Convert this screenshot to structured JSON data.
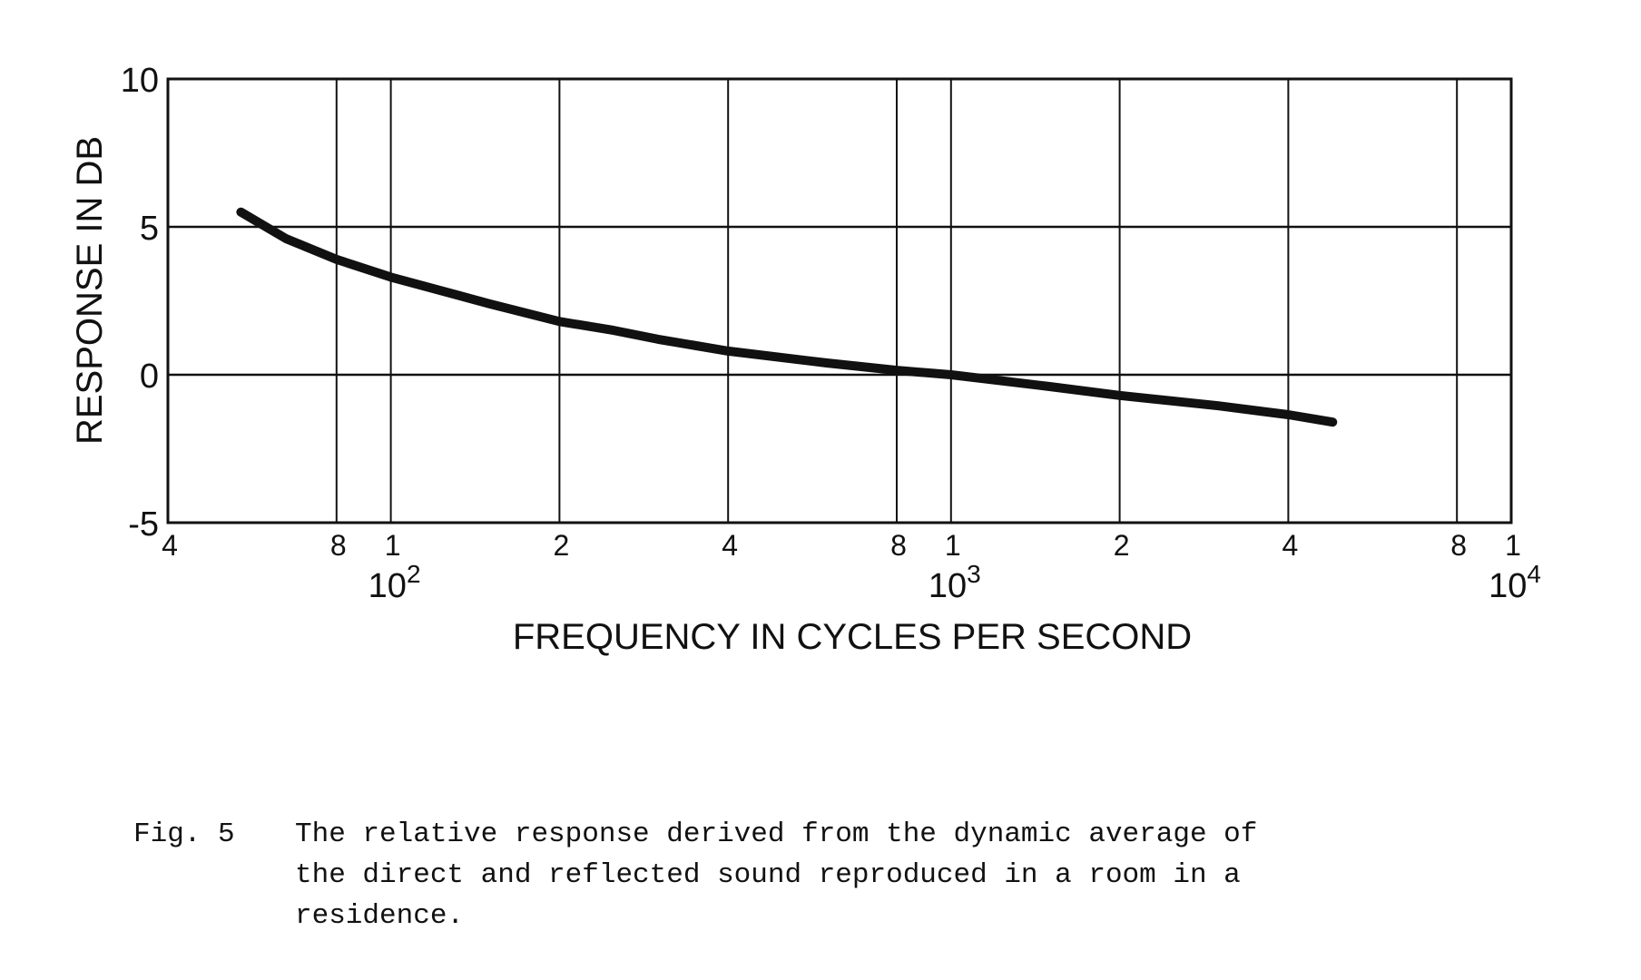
{
  "chart_data": {
    "type": "line",
    "xlabel": "FREQUENCY IN CYCLES PER SECOND",
    "ylabel": "RESPONSE IN DB",
    "x_scale": "log",
    "xlim": [
      40,
      10000
    ],
    "ylim": [
      -5,
      10
    ],
    "grid": true,
    "y_ticks": [
      {
        "value": 10,
        "label": "10"
      },
      {
        "value": 5,
        "label": "5"
      },
      {
        "value": 0,
        "label": "0"
      },
      {
        "value": -5,
        "label": "-5"
      }
    ],
    "x_ticks": [
      {
        "value": 40,
        "label": "4"
      },
      {
        "value": 80,
        "label": "8"
      },
      {
        "value": 100,
        "label": "1"
      },
      {
        "value": 200,
        "label": "2"
      },
      {
        "value": 400,
        "label": "4"
      },
      {
        "value": 800,
        "label": "8"
      },
      {
        "value": 1000,
        "label": "1"
      },
      {
        "value": 2000,
        "label": "2"
      },
      {
        "value": 4000,
        "label": "4"
      },
      {
        "value": 8000,
        "label": "8"
      },
      {
        "value": 10000,
        "label": "1"
      }
    ],
    "decade_labels": [
      {
        "value": 100,
        "base": "10",
        "exp": "2"
      },
      {
        "value": 1000,
        "base": "10",
        "exp": "3"
      },
      {
        "value": 10000,
        "base": "10",
        "exp": "4"
      }
    ],
    "series": [
      {
        "x": [
          54,
          65,
          80,
          100,
          150,
          200,
          250,
          300,
          400,
          600,
          800,
          1000,
          1500,
          2000,
          3000,
          4000,
          4800
        ],
        "y": [
          5.5,
          4.6,
          3.9,
          3.3,
          2.4,
          1.8,
          1.5,
          1.2,
          0.8,
          0.4,
          0.15,
          0.0,
          -0.4,
          -0.7,
          -1.05,
          -1.35,
          -1.6
        ]
      }
    ],
    "caption": {
      "label": "Fig. 5",
      "lines": [
        "The relative response derived from the dynamic average of",
        "the direct and reflected sound reproduced in a room in a",
        "residence."
      ]
    }
  }
}
